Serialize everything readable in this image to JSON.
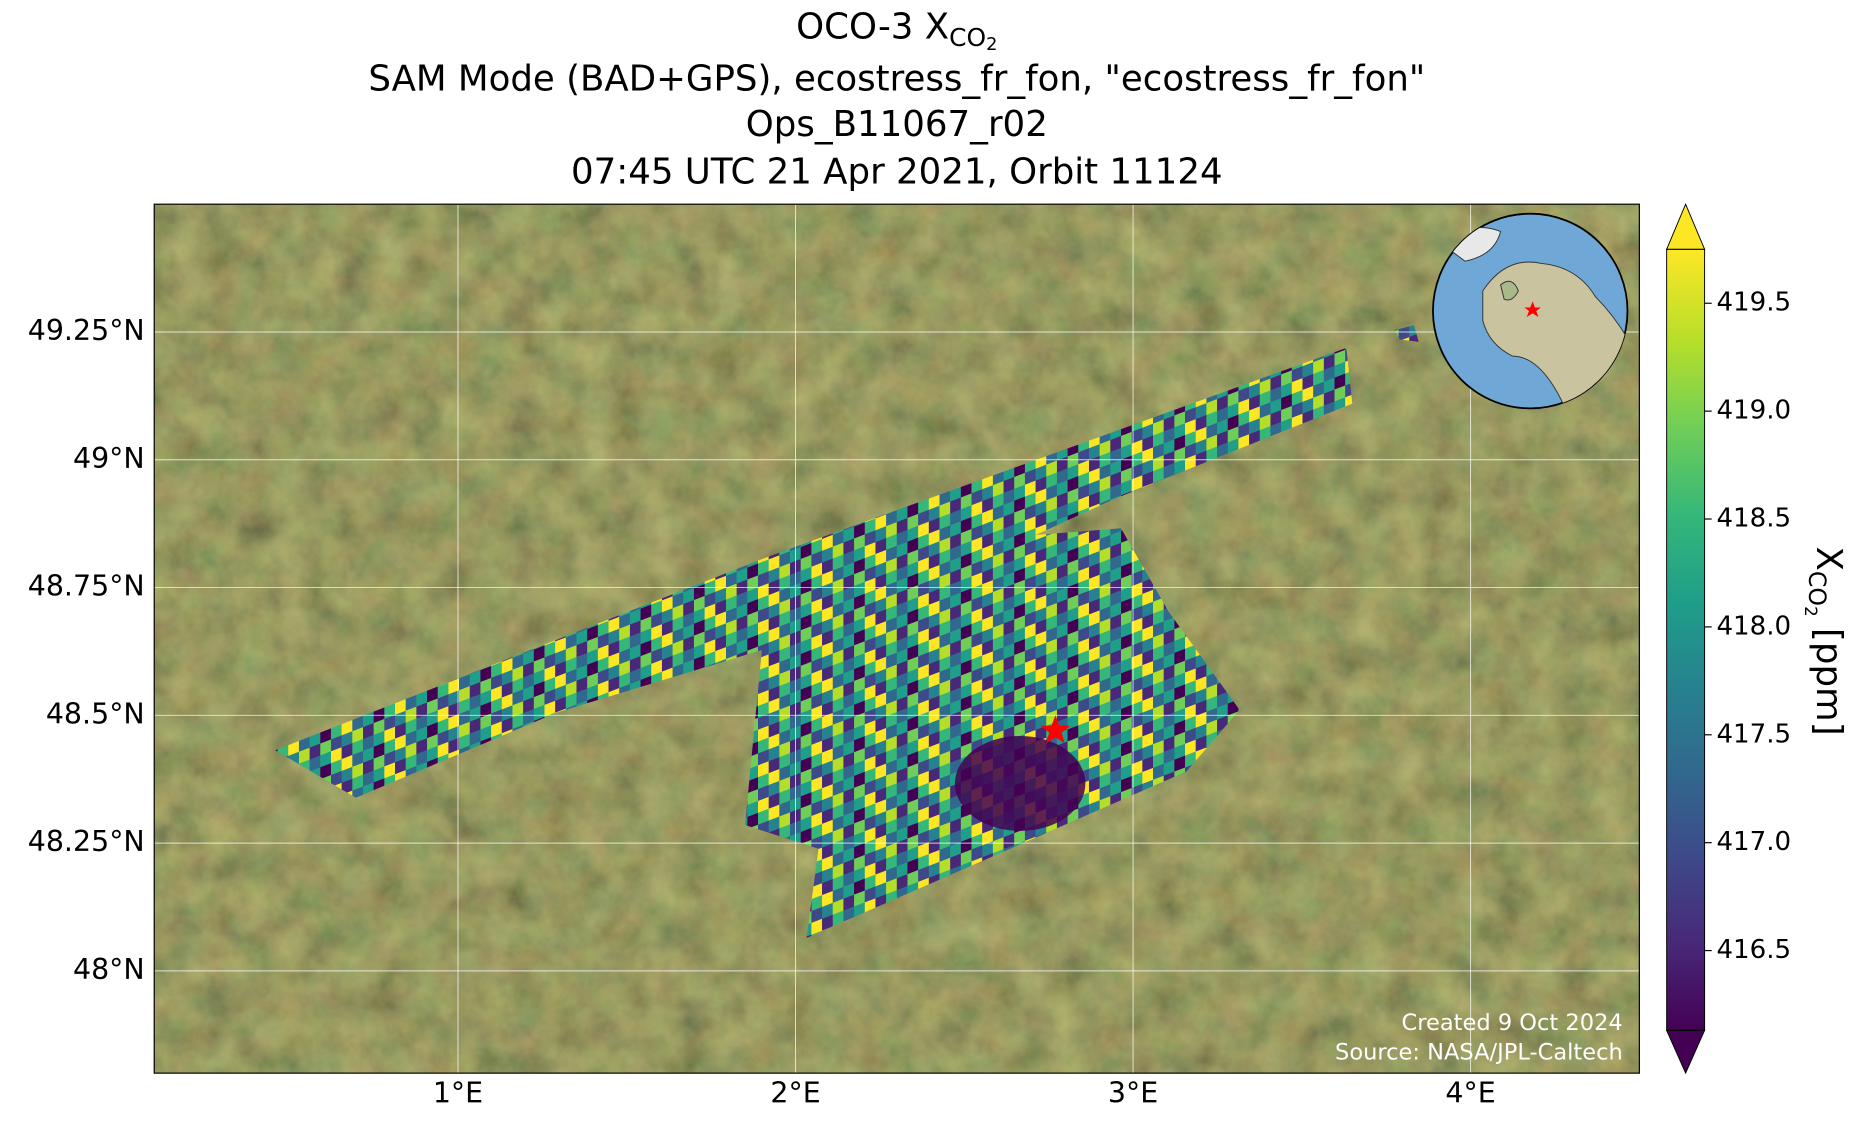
{
  "chart_data": {
    "type": "map",
    "title_prefix": "OCO-3 X",
    "title_sub": "CO",
    "title_subsub": "2",
    "subtitle_lines": [
      "SAM Mode (BAD+GPS), ecostress_fr_fon, \"ecostress_fr_fon\"",
      "Ops_B11067_r02",
      "07:45 UTC 21 Apr 2021, Orbit 11124"
    ],
    "xlim": [
      0.1,
      4.5
    ],
    "ylim": [
      47.8,
      49.5
    ],
    "xticks": [
      {
        "value": 1,
        "label": "1°E"
      },
      {
        "value": 2,
        "label": "2°E"
      },
      {
        "value": 3,
        "label": "3°E"
      },
      {
        "value": 4,
        "label": "4°E"
      }
    ],
    "yticks": [
      {
        "value": 48,
        "label": "48°N"
      },
      {
        "value": 48.25,
        "label": "48.25°N"
      },
      {
        "value": 48.5,
        "label": "48.5°N"
      },
      {
        "value": 48.75,
        "label": "48.75°N"
      },
      {
        "value": 49,
        "label": "49°N"
      },
      {
        "value": 49.25,
        "label": "49.25°N"
      }
    ],
    "grid": true,
    "site": {
      "lon": 2.77,
      "lat": 48.47,
      "color": "#ff0000"
    },
    "colorbar": {
      "lim": [
        416.13,
        419.75
      ],
      "ticks": [
        416.5,
        {
          "value": 417,
          "label": "417.0"
        },
        417.5,
        {
          "value": 418,
          "label": "418.0"
        },
        418.5,
        {
          "value": 419,
          "label": "419.0"
        },
        419.5
      ],
      "label_prefix": "X",
      "label_sub": "CO",
      "label_subsub": "2",
      "label_suffix": " [ppm]"
    },
    "credits": [
      "Created 9 Oct 2024",
      "Source: NASA/JPL-Caltech"
    ]
  }
}
